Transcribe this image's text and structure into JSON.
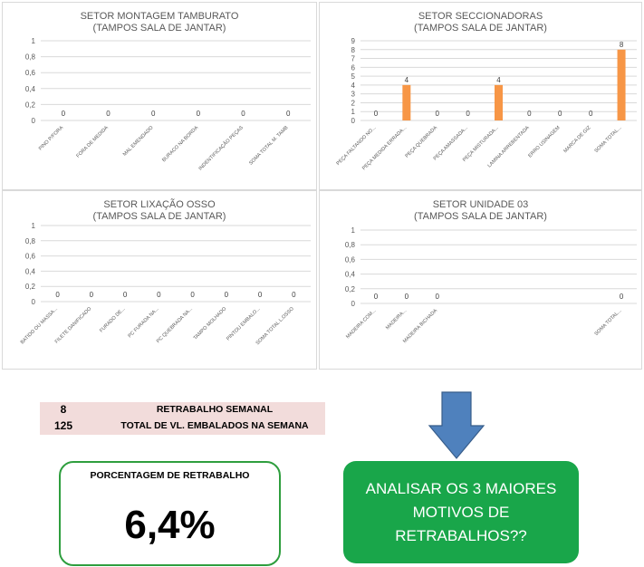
{
  "charts": [
    {
      "title": "SETOR  MONTAGEM TAMBURATO",
      "subtitle": "(TAMPOS SALA DE JANTAR)",
      "chart_data": {
        "type": "bar",
        "categories": [
          "PINO P/FORA",
          "FORA DE MEDIDA",
          "MAL EMENDADO",
          "BURACO NA BORDA",
          "INDENTIFICAÇÃO PEÇAS",
          "SOMA TOTAL  M. TAMB"
        ],
        "values": [
          0,
          0,
          0,
          0,
          0,
          0
        ],
        "yticks": [
          "0",
          "0,2",
          "0,4",
          "0,6",
          "0,8",
          "1"
        ],
        "ylim": [
          0,
          1
        ]
      }
    },
    {
      "title": "SETOR SECCIONADORAS",
      "subtitle": "(TAMPOS SALA DE JANTAR)",
      "chart_data": {
        "type": "bar",
        "categories": [
          "PEÇA FALTANDO NO...",
          "PEÇA MEDIDA ERRADA...",
          "PEÇA QUEBRADA",
          "PEÇA AMASSADA...",
          "PEÇA MISTURADA...",
          "LAMINA ARREBENTADA",
          "ERRO USINAGEM",
          "MARCA DE GIZ",
          "SOMA TOTAL..."
        ],
        "values": [
          0,
          4,
          0,
          0,
          4,
          0,
          0,
          0,
          8
        ],
        "yticks": [
          "0",
          "1",
          "2",
          "3",
          "4",
          "5",
          "6",
          "7",
          "8",
          "9"
        ],
        "ylim": [
          0,
          9
        ]
      }
    },
    {
      "title": "SETOR LIXAÇÃO OSSO",
      "subtitle": "(TAMPOS SALA DE JANTAR)",
      "chart_data": {
        "type": "bar",
        "categories": [
          "BATIDO OU MASSA...",
          "FILETE DANIFICADO",
          "FURADO DE...",
          "PC FURADA NA...",
          "PC QUEBRADA  NA...",
          "TAMPO MOLHADO",
          "PINTOU EMBALO...",
          "SOMA TOTAL  L.OSSO"
        ],
        "values": [
          0,
          0,
          0,
          0,
          0,
          0,
          0,
          0
        ],
        "yticks": [
          "0",
          "0,2",
          "0,4",
          "0,6",
          "0,8",
          "1"
        ],
        "ylim": [
          0,
          1
        ]
      }
    },
    {
      "title": "SETOR UNIDADE 03",
      "subtitle": "(TAMPOS SALA DE JANTAR)",
      "chart_data": {
        "type": "bar",
        "categories": [
          "MADEIRA COM...",
          "MADEIRA...",
          "MADEIRA BICHADA",
          "",
          "",
          "",
          "",
          "",
          "SOMA TOTAL..."
        ],
        "values": [
          0,
          0,
          0,
          null,
          null,
          null,
          null,
          null,
          0
        ],
        "yticks": [
          "0",
          "0,2",
          "0,4",
          "0,6",
          "0,8",
          "1"
        ],
        "ylim": [
          0,
          1
        ]
      }
    }
  ],
  "summary": {
    "retrabalho_count": "8",
    "retrabalho_label": "RETRABALHO SEMANAL",
    "total_count": "125",
    "total_label": "TOTAL DE VL. EMBALADOS NA SEMANA"
  },
  "percentage": {
    "title": "PORCENTAGEM DE RETRABALHO",
    "value": "6,4%"
  },
  "action": {
    "text": "ANALISAR OS 3 MAIORES MOTIVOS DE RETRABALHOS??"
  },
  "colors": {
    "bar": "#f79646",
    "grid": "#d9d9d9",
    "arrow": "#4f81bd",
    "action_bg": "#19a64a"
  }
}
